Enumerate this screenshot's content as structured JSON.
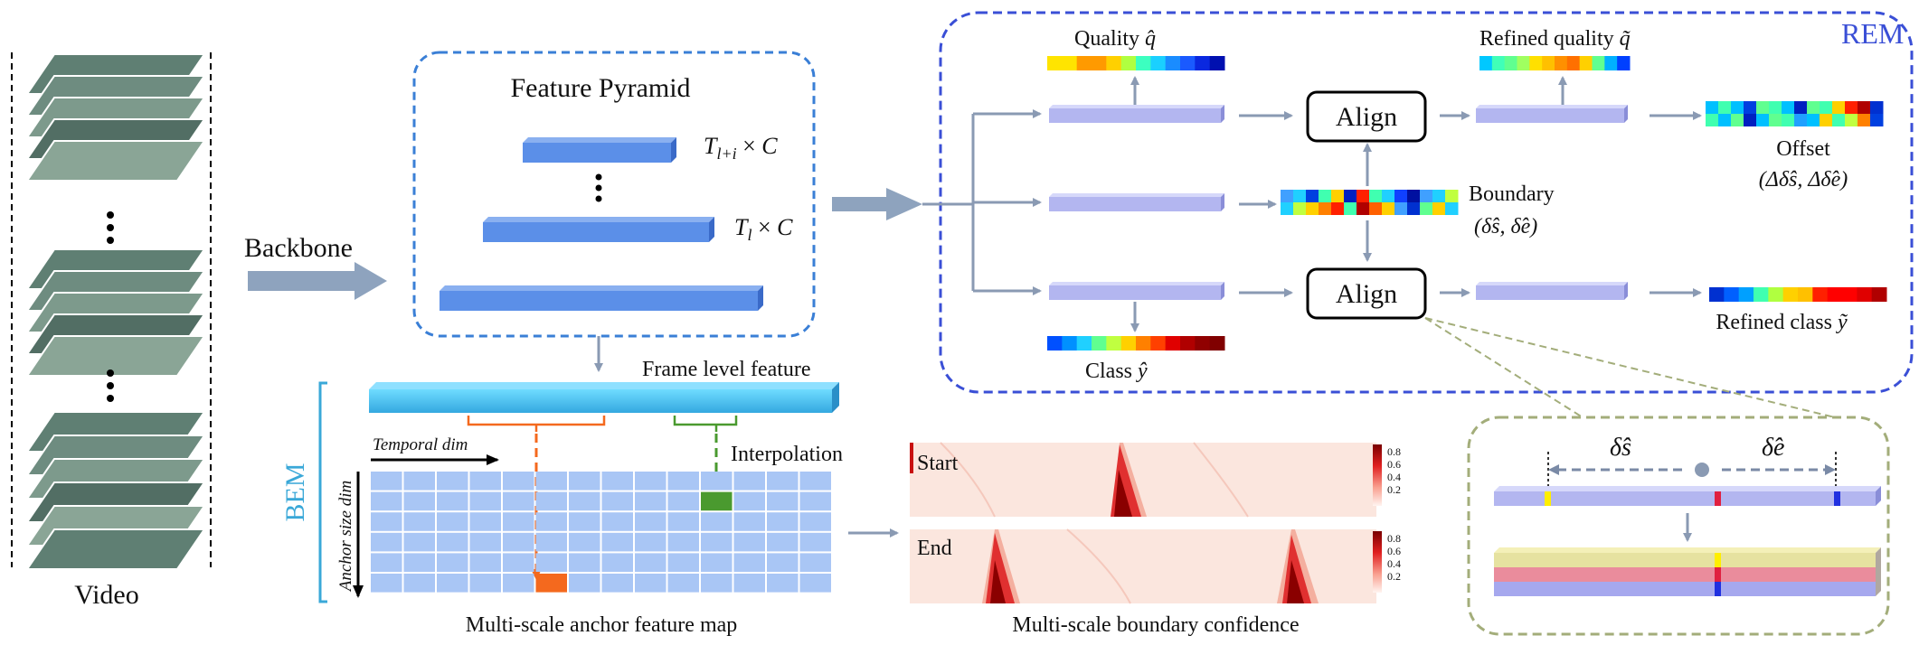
{
  "labels": {
    "video": "Video",
    "backbone": "Backbone",
    "feature_pyramid": "Feature Pyramid",
    "pyramid_top": "T_{l+i} × C",
    "pyramid_mid": "T_l × C",
    "frame_level_feature": "Frame level feature",
    "interpolation": "Interpolation",
    "temporal_dim": "Temporal dim",
    "anchor_size_dim": "Anchor size dim",
    "bem": "BEM",
    "anchor_map_caption": "Multi-scale anchor feature map",
    "boundary_conf_caption": "Multi-scale boundary confidence",
    "start": "Start",
    "end": "End",
    "rem": "REM",
    "quality": "Quality",
    "quality_sym": "q̂",
    "refined_quality": "Refined quality",
    "refined_quality_sym": "q̃",
    "offset": "Offset",
    "offset_sym": "(Δδ̂s, Δδ̂e)",
    "boundary": "Boundary",
    "boundary_sym": "(δ̂s, δ̂e)",
    "class": "Class",
    "class_sym": "ŷ",
    "refined_class": "Refined class",
    "refined_class_sym": "ỹ",
    "align": "Align",
    "delta_s": "δ̂s",
    "delta_e": "δ̂e"
  },
  "colorbar_ticks": [
    "0.8",
    "0.6",
    "0.4",
    "0.2"
  ],
  "colors": {
    "feature_blue": "#5b8fe8",
    "frame_feature": "#4fc3e8",
    "head_bar": "#b3b6f0",
    "rem_border": "#3a4fd6",
    "bem_color": "#3aa8d8",
    "pyramid_border": "#3a7fd6",
    "detail_border": "#a3ad7a",
    "orange": "#f4691e",
    "green": "#4a9a2f",
    "arrow_gray": "#8a9ab3"
  },
  "heatmap": {
    "quality": [
      "#ffe400",
      "#ffe400",
      "#ff9a00",
      "#ff9a00",
      "#ffd000",
      "#b0ff40",
      "#3cffc0",
      "#1ad0ff",
      "#1a8cff",
      "#1a5aff",
      "#0a28e0",
      "#0010b0"
    ],
    "refined_quality": [
      "#00c8ff",
      "#40ffb8",
      "#60ff90",
      "#a0ff60",
      "#ffe000",
      "#ffc000",
      "#ff9000",
      "#ff7000",
      "#ffd000",
      "#60ff90",
      "#00b0ff",
      "#0040ff"
    ],
    "class": [
      "#0050ff",
      "#0090ff",
      "#20d0ff",
      "#60ff90",
      "#c0ff40",
      "#ffd000",
      "#ff8000",
      "#ff4000",
      "#e00000",
      "#b00000",
      "#900000",
      "#800000"
    ],
    "refined_class": [
      "#0030d0",
      "#0060ff",
      "#00a0ff",
      "#40ffb0",
      "#b0ff40",
      "#ffd000",
      "#ffc000",
      "#ff2000",
      "#ff0000",
      "#ff0000",
      "#e00000",
      "#b00000"
    ]
  }
}
